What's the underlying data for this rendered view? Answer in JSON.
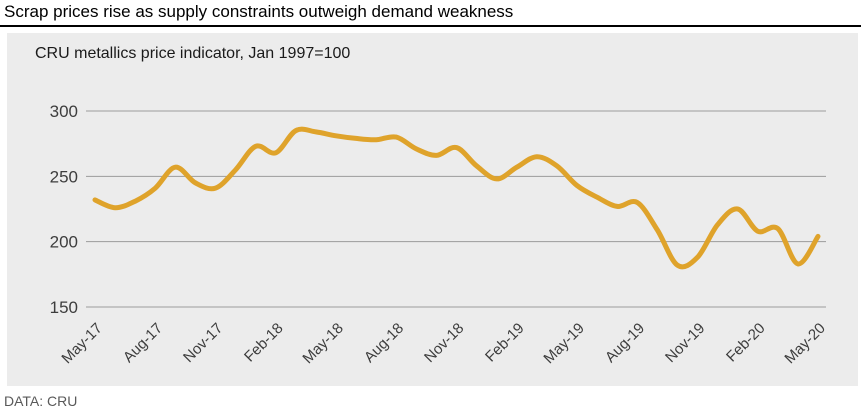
{
  "header": {
    "title": "Scrap prices rise as supply constraints outweigh demand weakness"
  },
  "footer": {
    "source": "DATA: CRU"
  },
  "colors": {
    "line": "#dfa32b",
    "panel_bg": "#ececec",
    "grid": "#9b9b9b",
    "axis_text": "#3d3d3d",
    "title_text": "#000000",
    "source_text": "#595959"
  },
  "chart_data": {
    "type": "line",
    "title": "CRU metallics price indicator, Jan 1997=100",
    "xlabel": "",
    "ylabel": "",
    "x": [
      "May-17",
      "Jun-17",
      "Jul-17",
      "Aug-17",
      "Sep-17",
      "Oct-17",
      "Nov-17",
      "Dec-17",
      "Jan-18",
      "Feb-18",
      "Mar-18",
      "Apr-18",
      "May-18",
      "Jun-18",
      "Jul-18",
      "Aug-18",
      "Sep-18",
      "Oct-18",
      "Nov-18",
      "Dec-18",
      "Jan-19",
      "Feb-19",
      "Mar-19",
      "Apr-19",
      "May-19",
      "Jun-19",
      "Jul-19",
      "Aug-19",
      "Sep-19",
      "Oct-19",
      "Nov-19",
      "Dec-19",
      "Jan-20",
      "Feb-20",
      "Mar-20",
      "Apr-20",
      "May-20"
    ],
    "values": [
      232,
      226,
      231,
      241,
      257,
      245,
      241,
      255,
      273,
      268,
      285,
      284,
      281,
      279,
      278,
      280,
      271,
      266,
      272,
      258,
      248,
      257,
      265,
      258,
      243,
      234,
      227,
      230,
      209,
      182,
      188,
      213,
      225,
      208,
      210,
      183,
      204
    ],
    "x_tick_labels": [
      "May-17",
      "Aug-17",
      "Nov-17",
      "Feb-18",
      "May-18",
      "Aug-18",
      "Nov-18",
      "Feb-19",
      "May-19",
      "Aug-19",
      "Nov-19",
      "Feb-20",
      "May-20"
    ],
    "x_tick_every": 3,
    "yticks": [
      150,
      200,
      250,
      300
    ],
    "ylim": [
      150,
      300
    ],
    "grid": true,
    "legend": false,
    "line_width": 5,
    "smoothing": "catmull-rom"
  }
}
